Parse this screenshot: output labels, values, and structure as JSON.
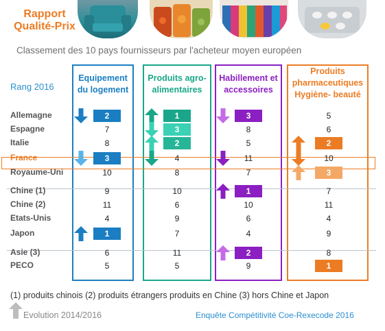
{
  "header": {
    "title_line1": "Rapport",
    "title_line2": "Qualité-Prix",
    "subtitle": "Classement des 10 pays fournisseurs par l'acheteur moyen européen"
  },
  "photos": [
    "armchair-photo",
    "preserved-food-jars-photo",
    "clothes-rack-photo",
    "medicine-pills-photo"
  ],
  "rank_label": "Rang 2016",
  "colors": {
    "logement": "#1b7ec2",
    "agro": "#1aa68a",
    "habillement": "#8b1fc2",
    "pharma": "#ec7c24",
    "france": "#ec7c24",
    "evolution_arrow": "#bdbdbd"
  },
  "chart_data": {
    "type": "table",
    "columns": [
      {
        "key": "logement",
        "label_line1": "Equipement",
        "label_line2": "du logement",
        "label_line3": ""
      },
      {
        "key": "agro",
        "label_line1": "Produits agro-",
        "label_line2": "alimentaires",
        "label_line3": ""
      },
      {
        "key": "habillement",
        "label_line1": "Habillement et",
        "label_line2": "accessoires",
        "label_line3": ""
      },
      {
        "key": "pharma",
        "label_line1": "Produits",
        "label_line2": "pharmaceutiques",
        "label_line3": "Hygiène- beauté"
      }
    ],
    "rows": [
      {
        "country": "Allemagne",
        "group": 1,
        "cells": [
          {
            "rank": "2",
            "badge": true,
            "arrow": "down"
          },
          {
            "rank": "1",
            "badge": true,
            "arrow": "up"
          },
          {
            "rank": "3",
            "badge": true,
            "arrow": "down"
          },
          {
            "rank": "5",
            "badge": false,
            "arrow": ""
          }
        ]
      },
      {
        "country": "Espagne",
        "group": 1,
        "cells": [
          {
            "rank": "7",
            "badge": false,
            "arrow": ""
          },
          {
            "rank": "3",
            "badge": true,
            "arrow": "down"
          },
          {
            "rank": "8",
            "badge": false,
            "arrow": ""
          },
          {
            "rank": "6",
            "badge": false,
            "arrow": ""
          }
        ]
      },
      {
        "country": "Italie",
        "group": 1,
        "cells": [
          {
            "rank": "8",
            "badge": false,
            "arrow": ""
          },
          {
            "rank": "2",
            "badge": true,
            "arrow": "up"
          },
          {
            "rank": "5",
            "badge": false,
            "arrow": ""
          },
          {
            "rank": "2",
            "badge": true,
            "arrow": "up"
          }
        ]
      },
      {
        "country": "France",
        "group": 1,
        "cells": [
          {
            "rank": "3",
            "badge": true,
            "arrow": "down"
          },
          {
            "rank": "4",
            "badge": false,
            "arrow": "down"
          },
          {
            "rank": "11",
            "badge": false,
            "arrow": "down"
          },
          {
            "rank": "10",
            "badge": false,
            "arrow": "down"
          }
        ]
      },
      {
        "country": "Royaume-Uni",
        "group": 1,
        "cells": [
          {
            "rank": "10",
            "badge": false,
            "arrow": ""
          },
          {
            "rank": "8",
            "badge": false,
            "arrow": ""
          },
          {
            "rank": "7",
            "badge": false,
            "arrow": ""
          },
          {
            "rank": "3",
            "badge": true,
            "arrow": "up"
          }
        ]
      },
      {
        "country": "Chine (1)",
        "group": 2,
        "cells": [
          {
            "rank": "9",
            "badge": false,
            "arrow": ""
          },
          {
            "rank": "10",
            "badge": false,
            "arrow": ""
          },
          {
            "rank": "1",
            "badge": true,
            "arrow": "up"
          },
          {
            "rank": "7",
            "badge": false,
            "arrow": ""
          }
        ]
      },
      {
        "country": "Chine (2)",
        "group": 2,
        "cells": [
          {
            "rank": "11",
            "badge": false,
            "arrow": ""
          },
          {
            "rank": "6",
            "badge": false,
            "arrow": ""
          },
          {
            "rank": "10",
            "badge": false,
            "arrow": ""
          },
          {
            "rank": "11",
            "badge": false,
            "arrow": ""
          }
        ]
      },
      {
        "country": "Etats-Unis",
        "group": 2,
        "cells": [
          {
            "rank": "4",
            "badge": false,
            "arrow": ""
          },
          {
            "rank": "9",
            "badge": false,
            "arrow": ""
          },
          {
            "rank": "6",
            "badge": false,
            "arrow": ""
          },
          {
            "rank": "4",
            "badge": false,
            "arrow": ""
          }
        ]
      },
      {
        "country": "Japon",
        "group": 2,
        "cells": [
          {
            "rank": "1",
            "badge": true,
            "arrow": "up"
          },
          {
            "rank": "7",
            "badge": false,
            "arrow": ""
          },
          {
            "rank": "4",
            "badge": false,
            "arrow": ""
          },
          {
            "rank": "9",
            "badge": false,
            "arrow": ""
          }
        ]
      },
      {
        "country": "Asie (3)",
        "group": 3,
        "cells": [
          {
            "rank": "6",
            "badge": false,
            "arrow": ""
          },
          {
            "rank": "11",
            "badge": false,
            "arrow": ""
          },
          {
            "rank": "2",
            "badge": true,
            "arrow": "up"
          },
          {
            "rank": "8",
            "badge": false,
            "arrow": ""
          }
        ]
      },
      {
        "country": "PECO",
        "group": 3,
        "cells": [
          {
            "rank": "5",
            "badge": false,
            "arrow": ""
          },
          {
            "rank": "5",
            "badge": false,
            "arrow": ""
          },
          {
            "rank": "9",
            "badge": false,
            "arrow": ""
          },
          {
            "rank": "1",
            "badge": true,
            "arrow": ""
          }
        ]
      }
    ]
  },
  "footnote": "(1) produits chinois  (2) produits étrangers produits en Chine (3) hors Chine et Japon",
  "legend_evolution": "Evolution 2014/2016",
  "source": "Enquête Compétitivité Coe-Rexecode 2016"
}
